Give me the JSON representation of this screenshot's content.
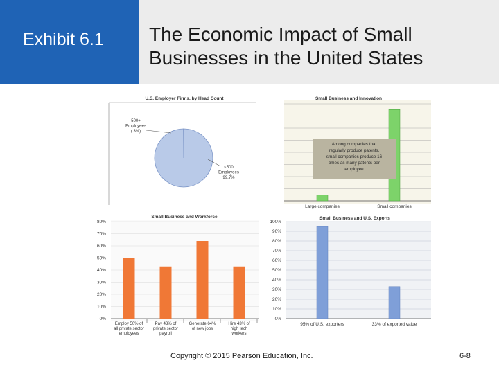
{
  "slide": {
    "exhibit_label": "Exhibit 6.1",
    "title_line1": "The Economic Impact of Small",
    "title_line2": "Businesses in the United States",
    "copyright": "Copyright © 2015 Pearson Education, Inc.",
    "slide_number": "6-8"
  },
  "colors": {
    "header_blue": "#1f63b5",
    "header_gray": "#ececec",
    "orange": "#f07836",
    "blue": "#7f9fd8",
    "green": "#7dd36a"
  },
  "chart_data": [
    {
      "type": "pie",
      "title": "U.S. Employer Firms, by Head Count",
      "slices": [
        {
          "label_lines": [
            "500+",
            "Employees",
            "(.3%)"
          ],
          "value": 0.3
        },
        {
          "label_lines": [
            "<500",
            "Employees",
            "99.7%"
          ],
          "value": 99.7
        }
      ]
    },
    {
      "type": "bar",
      "title": "Small Business and Innovation",
      "categories": [
        "Large companies",
        "Small companies"
      ],
      "values": [
        1,
        16
      ],
      "ylim": [
        0,
        17
      ],
      "annotation_lines": [
        "Among companies that",
        "regularly produce patents,",
        "small companies produce 16",
        "times as many patents per",
        "employee"
      ]
    },
    {
      "type": "bar",
      "title": "Small Business and Workforce",
      "categories": [
        [
          "Employ 50% of",
          "all private sector",
          "employees"
        ],
        [
          "Pay 43% of",
          "private sector",
          "payroll"
        ],
        [
          "Generate 64%",
          "of new jobs"
        ],
        [
          "Hire 43% of",
          "high tech",
          "workers"
        ]
      ],
      "values": [
        50,
        43,
        64,
        43
      ],
      "ylim": [
        0,
        80
      ],
      "yticks": [
        "0%",
        "10%",
        "20%",
        "30%",
        "40%",
        "50%",
        "60%",
        "70%",
        "80%"
      ]
    },
    {
      "type": "bar",
      "title": "Small Business and U.S. Exports",
      "categories": [
        "95% of U.S. exporters",
        "33% of exported value"
      ],
      "values": [
        95,
        33
      ],
      "ylim": [
        0,
        100
      ],
      "yticks": [
        "0%",
        "10%",
        "20%",
        "30%",
        "40%",
        "50%",
        "60%",
        "70%",
        "80%",
        "90%",
        "100%"
      ]
    }
  ]
}
